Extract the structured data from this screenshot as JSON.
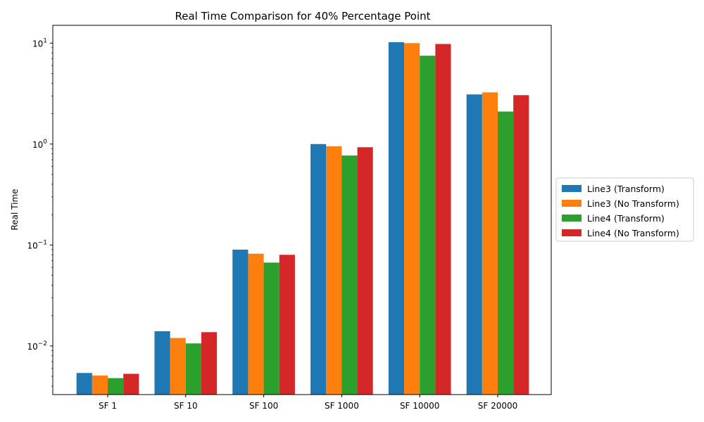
{
  "chart_data": {
    "type": "bar",
    "title": "Real Time Comparison for 40% Percentage Point",
    "xlabel": "",
    "ylabel": "Real Time",
    "yscale": "log",
    "ylim": [
      0.0033,
      15
    ],
    "categories": [
      "SF 1",
      "SF 10",
      "SF 100",
      "SF 1000",
      "SF 10000",
      "SF 20000"
    ],
    "yticks": [
      {
        "value": 0.01,
        "base": "10",
        "exp": "−2"
      },
      {
        "value": 0.1,
        "base": "10",
        "exp": "−1"
      },
      {
        "value": 1,
        "base": "10",
        "exp": "0"
      },
      {
        "value": 10,
        "base": "10",
        "exp": "1"
      }
    ],
    "series": [
      {
        "name": "Line3 (Transform)",
        "color": "#1f77b4",
        "values": [
          0.0054,
          0.014,
          0.09,
          1.0,
          10.2,
          3.1
        ]
      },
      {
        "name": "Line3 (No Transform)",
        "color": "#ff7f0e",
        "values": [
          0.0051,
          0.012,
          0.082,
          0.95,
          10.0,
          3.25
        ]
      },
      {
        "name": "Line4 (Transform)",
        "color": "#2ca02c",
        "values": [
          0.0048,
          0.0106,
          0.067,
          0.77,
          7.5,
          2.1
        ]
      },
      {
        "name": "Line4 (No Transform)",
        "color": "#d62728",
        "values": [
          0.0053,
          0.0137,
          0.08,
          0.93,
          9.8,
          3.05
        ]
      }
    ],
    "grid": false,
    "legend": "center-right-outside"
  }
}
